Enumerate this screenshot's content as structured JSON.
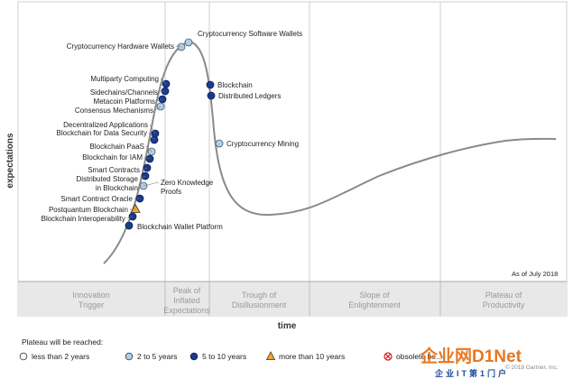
{
  "chart_data": {
    "type": "hype-cycle",
    "x_axis_label": "time",
    "y_axis_label": "expectations",
    "as_of": "As of July 2018",
    "phases": [
      "Innovation\nTrigger",
      "Peak of\nInflated\nExpectations",
      "Trough of\nDisillusionment",
      "Slope of\nEnlightenment",
      "Plateau of\nProductivity"
    ],
    "legend_title": "Plateau will be reached:",
    "legend": [
      {
        "key": "lt2",
        "label": "less than 2 years"
      },
      {
        "key": "2to5",
        "label": "2 to 5 years"
      },
      {
        "key": "5to10",
        "label": "5 to 10 years"
      },
      {
        "key": "gt10",
        "label": "more than 10 years"
      },
      {
        "key": "obsolete",
        "label": "obsolete be..."
      }
    ],
    "colors": {
      "lt2": "#ffffff",
      "2to5": "#a8d0f0",
      "5to10": "#1b3a8c",
      "gt10": "#f5a623",
      "obsolete": "#cc2222",
      "curve": "#888888",
      "band": "#e6e6e6"
    },
    "technologies": [
      {
        "name": "Cryptocurrency Software Wallets",
        "category": "2to5"
      },
      {
        "name": "Cryptocurrency Hardware Wallets",
        "category": "2to5"
      },
      {
        "name": "Multiparty Computing",
        "category": "5to10"
      },
      {
        "name": "Sidechains/Channels",
        "category": "5to10"
      },
      {
        "name": "Metacoin Platforms",
        "category": "5to10"
      },
      {
        "name": "Consensus Mechanisms",
        "category": "2to5"
      },
      {
        "name": "Blockchain",
        "category": "5to10"
      },
      {
        "name": "Distributed Ledgers",
        "category": "5to10"
      },
      {
        "name": "Decentralized Applications",
        "category": "5to10"
      },
      {
        "name": "Blockchain for Data Security",
        "category": "5to10"
      },
      {
        "name": "Cryptocurrency Mining",
        "category": "2to5"
      },
      {
        "name": "Blockchain PaaS",
        "category": "2to5"
      },
      {
        "name": "Blockchain for IAM",
        "category": "5to10"
      },
      {
        "name": "Smart Contracts",
        "category": "5to10"
      },
      {
        "name": "Distributed Storage in Blockchain",
        "category": "5to10"
      },
      {
        "name": "Zero Knowledge Proofs",
        "category": "2to5"
      },
      {
        "name": "Smart Contract Oracle",
        "category": "5to10"
      },
      {
        "name": "Postquantum Blockchain",
        "category": "gt10"
      },
      {
        "name": "Blockchain Interoperability",
        "category": "5to10"
      },
      {
        "name": "Blockchain Wallet Platform",
        "category": "5to10"
      }
    ]
  },
  "footer": {
    "copyright": "© 2018 Gartner, Inc.",
    "watermark_main": "企业网D1Net",
    "watermark_sub": "企业IT第1门户"
  }
}
